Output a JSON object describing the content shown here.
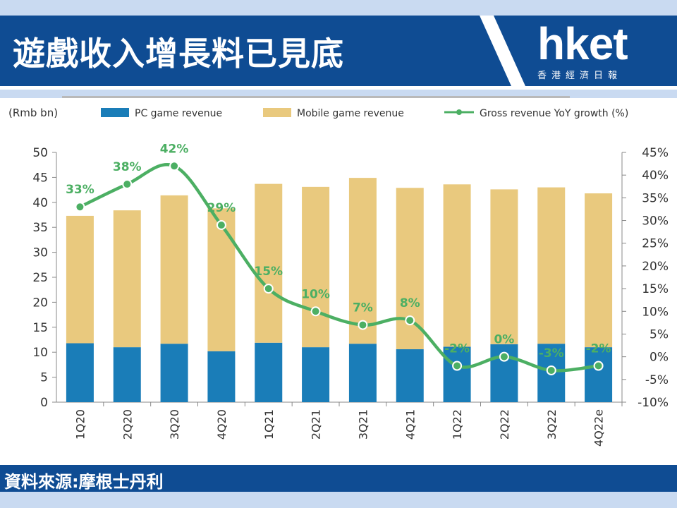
{
  "header": {
    "title": "遊戲收入增長料已見底",
    "logo_text": "hket",
    "logo_subtitle": "香港經濟日報"
  },
  "footer": {
    "source": "資料來源:摩根士丹利"
  },
  "colors": {
    "brand_blue": "#0f4c93",
    "pc_bar": "#1a7db8",
    "mobile_bar": "#e9c97e",
    "growth_line": "#4caf63"
  },
  "chart_data": {
    "type": "bar",
    "stacked": true,
    "unit_label": "(Rmb bn)",
    "categories": [
      "1Q20",
      "2Q20",
      "3Q20",
      "4Q20",
      "1Q21",
      "2Q21",
      "3Q21",
      "4Q21",
      "1Q22",
      "2Q22",
      "3Q22",
      "4Q22e"
    ],
    "series": [
      {
        "name": "PC game revenue",
        "kind": "bar",
        "axis": "left",
        "values": [
          11.8,
          11.0,
          11.7,
          10.2,
          11.9,
          11.0,
          11.7,
          10.6,
          11.1,
          11.6,
          11.7,
          11.0
        ]
      },
      {
        "name": "Mobile game revenue",
        "kind": "bar",
        "axis": "left",
        "values": [
          25.5,
          27.4,
          29.7,
          28.6,
          31.8,
          32.1,
          33.2,
          32.3,
          32.5,
          31.0,
          31.3,
          30.8
        ]
      },
      {
        "name": "Gross revenue YoY growth (%)",
        "kind": "line",
        "axis": "right",
        "values": [
          33,
          38,
          42,
          29,
          15,
          10,
          7,
          8,
          -2,
          0,
          -3,
          -2
        ],
        "labels": [
          "33%",
          "38%",
          "42%",
          "29%",
          "15%",
          "10%",
          "7%",
          "8%",
          "-2%",
          "0%",
          "-3%",
          "-2%"
        ]
      }
    ],
    "ylim": [
      0,
      50
    ],
    "yticks": [
      "0",
      "5",
      "10",
      "15",
      "20",
      "25",
      "30",
      "35",
      "40",
      "45",
      "50"
    ],
    "y2lim": [
      -10,
      45
    ],
    "y2ticks": [
      "-10%",
      "-5%",
      "0%",
      "5%",
      "10%",
      "15%",
      "20%",
      "25%",
      "30%",
      "35%",
      "40%",
      "45%"
    ],
    "legend_position": "top",
    "grid": false
  }
}
